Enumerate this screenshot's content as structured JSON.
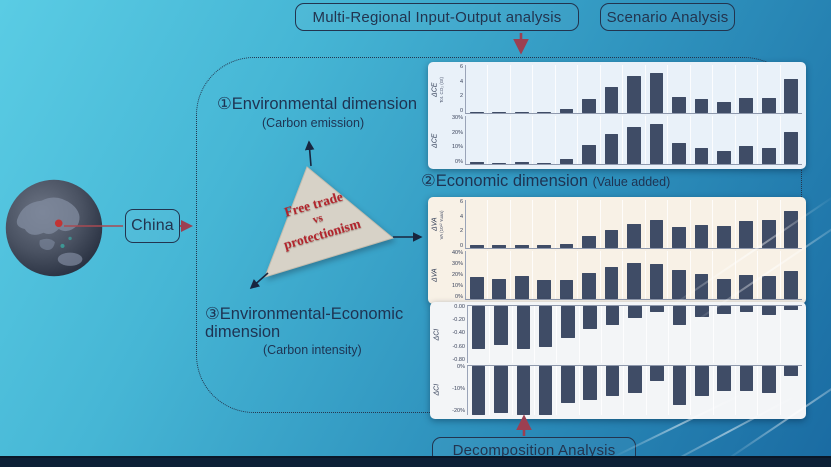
{
  "colors": {
    "accent_red": "#9c3f51",
    "ink": "#22344f",
    "bar": "#3f4c66",
    "triangle_fill": "#d7d2c7",
    "triangle_text": "#b2242c"
  },
  "boxes": {
    "mrio": "Multi-Regional Input-Output analysis",
    "scenario": "Scenario Analysis",
    "china": "China",
    "decomposition": "Decomposition Analysis"
  },
  "triangle": {
    "line1": "Free trade",
    "line2": "vs",
    "line3": "protectionism"
  },
  "dimensions": {
    "d1": {
      "title": "①Environmental dimension",
      "subtitle": "(Carbon emission)"
    },
    "d2": {
      "title": "②Economic dimension",
      "subtitle": "(Value added)"
    },
    "d3": {
      "title_line1": "③Environmental-Economic",
      "title_line2": "dimension",
      "subtitle": "(Carbon intensity)"
    }
  },
  "chart_data": [
    {
      "name": "environmental-dimension-carbon-emission",
      "type": "bar",
      "panel_bg": "#e9f1f9",
      "title": "①Environmental dimension (Carbon emission)",
      "legend_position": "none",
      "grid": "vertical-column-separators",
      "charts": [
        {
          "axis_label": "ΔCE",
          "unit": "Tot. CO₂ (Gt)",
          "ticks": [
            "6",
            "4",
            "2",
            "0"
          ],
          "ymin": 0,
          "ymax": 6,
          "flex": 1,
          "values": [
            0.05,
            0.04,
            0.1,
            0.04,
            0.45,
            1.8,
            3.3,
            4.6,
            5.0,
            2.0,
            1.8,
            1.4,
            1.9,
            1.9,
            4.3
          ]
        },
        {
          "axis_label": "ΔCE",
          "unit": "",
          "ticks": [
            "30%",
            "20%",
            "10%",
            "0%"
          ],
          "ymin": 0,
          "ymax": 30,
          "flex": 1,
          "values": [
            1,
            0.5,
            1.5,
            0.5,
            3,
            12,
            19,
            23,
            25,
            13,
            10,
            8,
            11,
            10,
            20
          ]
        }
      ]
    },
    {
      "name": "economic-dimension-value-added",
      "type": "bar",
      "panel_bg": "#f8f1e6",
      "title": "②Economic dimension (Value added)",
      "legend_position": "none",
      "grid": "vertical-column-separators",
      "charts": [
        {
          "axis_label": "ΔVA",
          "unit": "VA (10¹² Yuan)",
          "ticks": [
            "6",
            "4",
            "2",
            "0"
          ],
          "ymin": 0,
          "ymax": 6,
          "flex": 1,
          "values": [
            0.35,
            0.32,
            0.4,
            0.42,
            0.55,
            1.5,
            2.2,
            3.0,
            3.5,
            2.6,
            2.9,
            2.8,
            3.4,
            3.5,
            4.6
          ]
        },
        {
          "axis_label": "ΔVA",
          "unit": "",
          "ticks": [
            "40%",
            "30%",
            "20%",
            "10%",
            "0%"
          ],
          "ymin": 0,
          "ymax": 40,
          "flex": 1,
          "values": [
            18,
            17,
            19,
            16,
            16,
            22,
            27,
            30,
            29,
            24,
            21,
            17,
            20,
            19,
            23
          ]
        }
      ]
    },
    {
      "name": "environmental-economic-dimension-carbon-intensity",
      "type": "bar",
      "panel_bg": "#f3f5f7",
      "title": "③Environmental-Economic dimension (Carbon intensity)",
      "legend_position": "none",
      "grid": "vertical-column-separators",
      "charts": [
        {
          "axis_label": "ΔCI",
          "unit": "",
          "ticks": [
            "0.00",
            "-0.20",
            "-0.40",
            "-0.60",
            "-0.80"
          ],
          "ymin": -0.8,
          "ymax": 0,
          "flex": 1.18,
          "values": [
            -0.6,
            -0.55,
            -0.6,
            -0.57,
            -0.45,
            -0.32,
            -0.27,
            -0.17,
            -0.09,
            -0.27,
            -0.16,
            -0.11,
            -0.09,
            -0.13,
            -0.05
          ]
        },
        {
          "axis_label": "ΔCI",
          "unit": "",
          "ticks": [
            "0%",
            "-10%",
            "-20%"
          ],
          "ymin": -20,
          "ymax": 0,
          "flex": 1,
          "values": [
            -20,
            -19,
            -20,
            -20,
            -15,
            -14,
            -12,
            -11,
            -6,
            -16,
            -12,
            -10,
            -10,
            -11,
            -4
          ]
        }
      ]
    }
  ]
}
